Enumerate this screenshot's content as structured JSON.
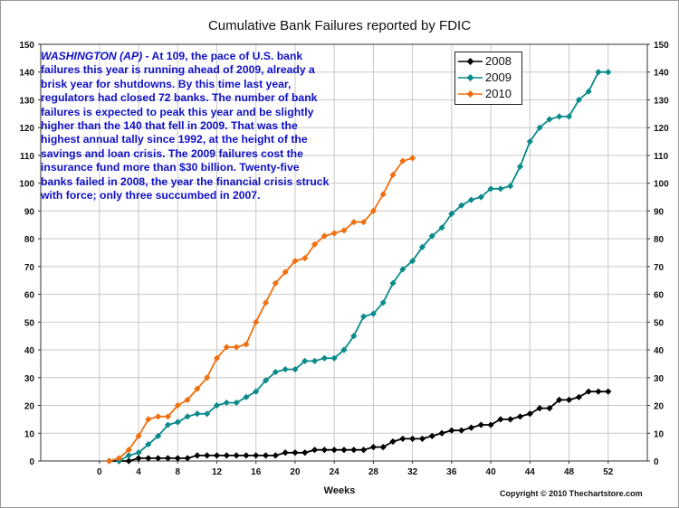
{
  "chart_data": {
    "type": "line",
    "title": "Cumulative Bank Failures reported by FDIC",
    "xlabel": "Weeks",
    "ylabel": "",
    "xlim": [
      -6,
      56
    ],
    "ylim": [
      0,
      150
    ],
    "x_ticks": [
      0,
      4,
      8,
      12,
      16,
      20,
      24,
      28,
      32,
      36,
      40,
      44,
      48,
      52
    ],
    "y_ticks": [
      0,
      10,
      20,
      30,
      40,
      50,
      60,
      70,
      80,
      90,
      100,
      110,
      120,
      130,
      140,
      150
    ],
    "grid": true,
    "legend_position": "top-right",
    "series": [
      {
        "name": "2008",
        "color": "#000000",
        "x": [
          1,
          2,
          3,
          4,
          5,
          6,
          7,
          8,
          9,
          10,
          11,
          12,
          13,
          14,
          15,
          16,
          17,
          18,
          19,
          20,
          21,
          22,
          23,
          24,
          25,
          26,
          27,
          28,
          29,
          30,
          31,
          32,
          33,
          34,
          35,
          36,
          37,
          38,
          39,
          40,
          41,
          42,
          43,
          44,
          45,
          46,
          47,
          48,
          49,
          50,
          51,
          52
        ],
        "values": [
          0,
          0,
          0,
          1,
          1,
          1,
          1,
          1,
          1,
          2,
          2,
          2,
          2,
          2,
          2,
          2,
          2,
          2,
          3,
          3,
          3,
          4,
          4,
          4,
          4,
          4,
          4,
          5,
          5,
          7,
          8,
          8,
          8,
          9,
          10,
          11,
          11,
          12,
          13,
          13,
          15,
          15,
          16,
          17,
          19,
          19,
          22,
          22,
          23,
          25,
          25,
          25
        ]
      },
      {
        "name": "2009",
        "color": "#0a8a8a",
        "x": [
          2,
          3,
          4,
          5,
          6,
          7,
          8,
          9,
          10,
          11,
          12,
          13,
          14,
          15,
          16,
          17,
          18,
          19,
          20,
          21,
          22,
          23,
          24,
          25,
          26,
          27,
          28,
          29,
          30,
          31,
          32,
          33,
          34,
          35,
          36,
          37,
          38,
          39,
          40,
          41,
          42,
          43,
          44,
          45,
          46,
          47,
          48,
          49,
          50,
          51,
          52
        ],
        "values": [
          0,
          2,
          3,
          6,
          9,
          13,
          14,
          16,
          17,
          17,
          20,
          21,
          21,
          23,
          25,
          29,
          32,
          33,
          33,
          36,
          36,
          37,
          37,
          40,
          45,
          52,
          53,
          57,
          64,
          69,
          72,
          77,
          81,
          84,
          89,
          92,
          94,
          95,
          98,
          98,
          99,
          106,
          115,
          120,
          123,
          124,
          124,
          130,
          133,
          140,
          140
        ]
      },
      {
        "name": "2010",
        "color": "#f07010",
        "x": [
          1,
          2,
          3,
          4,
          5,
          6,
          7,
          8,
          9,
          10,
          11,
          12,
          13,
          14,
          15,
          16,
          17,
          18,
          19,
          20,
          21,
          22,
          23,
          24,
          25,
          26,
          27,
          28,
          29,
          30,
          31,
          32
        ],
        "values": [
          0,
          1,
          4,
          9,
          15,
          16,
          16,
          20,
          22,
          26,
          30,
          37,
          41,
          41,
          42,
          50,
          57,
          64,
          68,
          72,
          73,
          78,
          81,
          82,
          83,
          86,
          86,
          90,
          96,
          103,
          108,
          109
        ]
      }
    ]
  },
  "annotation": {
    "lead": "WASHINGTON (AP) -",
    "body": " At 109, the pace of U.S. bank failures this year is running ahead of 2009, already a brisk year for shutdowns. By this time last year, regulators had closed 72 banks.   The number of bank failures is expected to peak this year and be slightly higher than the 140 that fell in 2009.  That was the highest annual tally since 1992, at the height of the savings and loan crisis.  The 2009 failures cost the insurance fund more than $30 billion.  Twenty-five banks failed in 2008, the year the financial crisis struck with force; only three succumbed in 2007."
  },
  "copyright": "Copyright © 2010 Thechartstore.com"
}
